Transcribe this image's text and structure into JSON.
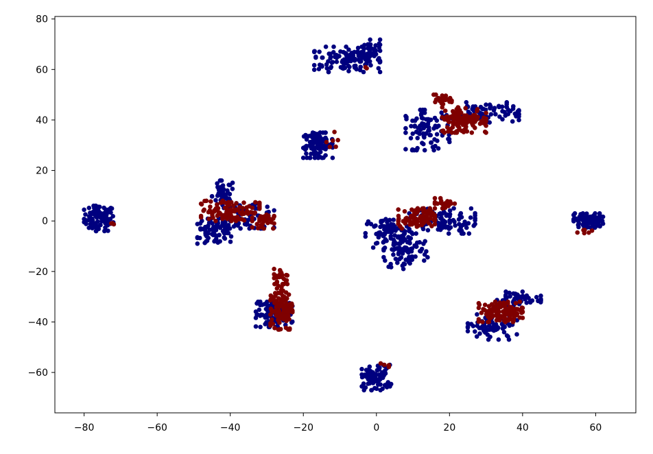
{
  "chart_data": {
    "type": "scatter",
    "title": "",
    "xlabel": "",
    "ylabel": "",
    "xlim": [
      -88,
      71
    ],
    "ylim": [
      -76,
      81
    ],
    "xticks": [
      -80,
      -60,
      -40,
      -20,
      0,
      20,
      40,
      60
    ],
    "yticks": [
      -60,
      -40,
      -20,
      0,
      20,
      40,
      60,
      80
    ],
    "xtick_labels": [
      "−80",
      "−60",
      "−40",
      "−20",
      "0",
      "20",
      "40",
      "60"
    ],
    "ytick_labels": [
      "−60",
      "−40",
      "−20",
      "0",
      "20",
      "40",
      "60",
      "80"
    ],
    "grid": false,
    "legend": "none",
    "series": [
      {
        "color": "#00007f",
        "clusters": [
          {
            "cx": -76,
            "cy": 1,
            "rx": 4,
            "ry": 5,
            "n": 90
          },
          {
            "cx": -8,
            "cy": 64,
            "rx": 9,
            "ry": 5,
            "n": 120
          },
          {
            "cx": -2,
            "cy": 68,
            "rx": 3,
            "ry": 4,
            "n": 40
          },
          {
            "cx": -16,
            "cy": 30,
            "rx": 4,
            "ry": 5,
            "n": 100
          },
          {
            "cx": -42,
            "cy": 10,
            "rx": 3,
            "ry": 6,
            "n": 50
          },
          {
            "cx": -44,
            "cy": -4,
            "rx": 5,
            "ry": 5,
            "n": 80
          },
          {
            "cx": -35,
            "cy": 2,
            "rx": 7,
            "ry": 5,
            "n": 60
          },
          {
            "cx": 3,
            "cy": -5,
            "rx": 6,
            "ry": 6,
            "n": 80
          },
          {
            "cx": 8,
            "cy": -12,
            "rx": 6,
            "ry": 7,
            "n": 80
          },
          {
            "cx": 18,
            "cy": 0,
            "rx": 9,
            "ry": 5,
            "n": 90
          },
          {
            "cx": 58,
            "cy": 0,
            "rx": 4,
            "ry": 3,
            "n": 90
          },
          {
            "cx": 0,
            "cy": -62,
            "rx": 4,
            "ry": 5,
            "n": 80
          },
          {
            "cx": -28,
            "cy": -37,
            "rx": 5,
            "ry": 5,
            "n": 110
          },
          {
            "cx": 14,
            "cy": 36,
            "rx": 6,
            "ry": 8,
            "n": 90
          },
          {
            "cx": 30,
            "cy": 43,
            "rx": 9,
            "ry": 4,
            "n": 80
          },
          {
            "cx": 32,
            "cy": -42,
            "rx": 7,
            "ry": 5,
            "n": 80
          },
          {
            "cx": 39,
            "cy": -31,
            "rx": 6,
            "ry": 3,
            "n": 50
          }
        ]
      },
      {
        "color": "#7f0000",
        "clusters": [
          {
            "cx": -40,
            "cy": 4,
            "rx": 8,
            "ry": 4,
            "n": 100
          },
          {
            "cx": -31,
            "cy": 0,
            "rx": 3,
            "ry": 3,
            "n": 30
          },
          {
            "cx": 11,
            "cy": 1,
            "rx": 5,
            "ry": 4,
            "n": 100
          },
          {
            "cx": 19,
            "cy": 7,
            "rx": 3,
            "ry": 2,
            "n": 25
          },
          {
            "cx": -26,
            "cy": -34,
            "rx": 3,
            "ry": 9,
            "n": 120
          },
          {
            "cx": -26,
            "cy": -22,
            "rx": 2,
            "ry": 3,
            "n": 25
          },
          {
            "cx": 24,
            "cy": 40,
            "rx": 6,
            "ry": 5,
            "n": 120
          },
          {
            "cx": 18,
            "cy": 48,
            "rx": 3,
            "ry": 2,
            "n": 20
          },
          {
            "cx": 34,
            "cy": -36,
            "rx": 6,
            "ry": 4,
            "n": 110
          },
          {
            "cx": -72,
            "cy": -1,
            "rx": 1,
            "ry": 1,
            "n": 3
          },
          {
            "cx": 57,
            "cy": -4,
            "rx": 2,
            "ry": 1,
            "n": 6
          },
          {
            "cx": 2,
            "cy": -57,
            "rx": 2,
            "ry": 1,
            "n": 4
          },
          {
            "cx": -12,
            "cy": 31,
            "rx": 3,
            "ry": 5,
            "n": 6
          },
          {
            "cx": -2,
            "cy": 61,
            "rx": 1,
            "ry": 1,
            "n": 2
          }
        ]
      }
    ]
  }
}
